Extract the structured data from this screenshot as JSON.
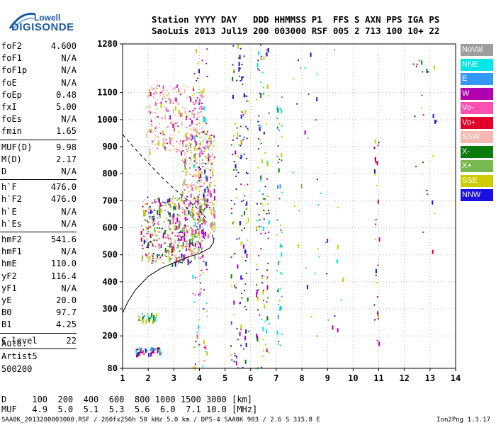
{
  "logo": {
    "line1": "Lowell",
    "line2": "DIGISONDE"
  },
  "header": {
    "row1": "Station YYYY DAY   DDD HHMMSS P1  FFS S AXN PPS IGA PS",
    "row2": "SaoLuis 2013 Jul19 200 003000 RSF 005 2 713 100 10+ 22"
  },
  "params_group1": [
    {
      "k": "foF2",
      "v": "4.600"
    },
    {
      "k": "foF1",
      "v": "N/A"
    },
    {
      "k": "foF1p",
      "v": "N/A"
    },
    {
      "k": "foE",
      "v": "N/A"
    },
    {
      "k": "foEp",
      "v": "0.48"
    },
    {
      "k": "fxI",
      "v": "5.00"
    },
    {
      "k": "foEs",
      "v": "N/A"
    },
    {
      "k": "fmin",
      "v": "1.65"
    }
  ],
  "params_group2": [
    {
      "k": "MUF(D)",
      "v": "9.98"
    },
    {
      "k": "M(D)",
      "v": "2.17"
    },
    {
      "k": "D",
      "v": "N/A"
    }
  ],
  "params_group3": [
    {
      "k": "h`F",
      "v": "476.0"
    },
    {
      "k": "h`F2",
      "v": "476.0"
    },
    {
      "k": "h`E",
      "v": "N/A"
    },
    {
      "k": "h`Es",
      "v": "N/A"
    }
  ],
  "params_group4": [
    {
      "k": "hmF2",
      "v": "541.6"
    },
    {
      "k": "hmF1",
      "v": "N/A"
    },
    {
      "k": "hmE",
      "v": "110.0"
    },
    {
      "k": "yF2",
      "v": "116.4"
    },
    {
      "k": "yF1",
      "v": "N/A"
    },
    {
      "k": "yE",
      "v": "20.0"
    },
    {
      "k": "B0",
      "v": "97.7"
    },
    {
      "k": "B1",
      "v": "4.25"
    }
  ],
  "params_group5": [
    {
      "k": "C-level",
      "v": "22"
    }
  ],
  "auto": {
    "line1": "Auto:",
    "line2": "Artist5",
    "line3": "500200"
  },
  "legend": [
    {
      "label": "NoVal",
      "color": "#9e9e9e"
    },
    {
      "label": "NNE",
      "color": "#00e5e5"
    },
    {
      "label": "E",
      "color": "#3399ff"
    },
    {
      "label": "W",
      "color": "#b000b0"
    },
    {
      "label": "Vo-",
      "color": "#ff4fb0"
    },
    {
      "label": "Vo+",
      "color": "#e0002a"
    },
    {
      "label": "SSW",
      "color": "#f6b8b0"
    },
    {
      "label": "X-",
      "color": "#0c7a0c"
    },
    {
      "label": "X+",
      "color": "#78b850"
    },
    {
      "label": "SSE",
      "color": "#cccc00"
    },
    {
      "label": "NNW",
      "color": "#1a10e0"
    }
  ],
  "bottom": {
    "d_row": "D     100  200  400  600  800 1000 1500 3000 [km]",
    "muf_row": "MUF   4.9  5.0  5.1  5.3  5.6  6.0  7.1 10.0 [MHz]"
  },
  "footer": {
    "left": "SAA0K_2013200003000.RSF / 260fx256h 50 kHz 5.0 km / DPS-4 SAA0K 903 / 2.6 S 315.8 E",
    "right": "Ion2Png 1.3.17"
  },
  "chart_data": {
    "type": "scatter",
    "x_axis": {
      "range": [
        1,
        14
      ],
      "ticks": [
        1,
        2,
        3,
        4,
        5,
        6,
        7,
        8,
        9,
        10,
        11,
        12,
        13,
        14
      ],
      "grid": true
    },
    "y_axis": {
      "range": [
        80,
        1280
      ],
      "ticks": [
        80,
        200,
        300,
        400,
        500,
        600,
        700,
        800,
        900,
        1000,
        1100,
        1280
      ],
      "grid": true
    },
    "dashed_trace": [
      [
        1.0,
        945
      ],
      [
        1.6,
        880
      ],
      [
        2.0,
        840
      ],
      [
        2.5,
        790
      ],
      [
        3.0,
        745
      ],
      [
        3.5,
        705
      ],
      [
        4.0,
        665
      ],
      [
        4.3,
        630
      ]
    ],
    "profile_curve": [
      [
        1.0,
        285
      ],
      [
        1.2,
        325
      ],
      [
        1.5,
        370
      ],
      [
        2.0,
        420
      ],
      [
        2.5,
        450
      ],
      [
        3.0,
        470
      ],
      [
        3.5,
        490
      ],
      [
        4.0,
        505
      ],
      [
        4.4,
        525
      ],
      [
        4.55,
        545
      ],
      [
        4.55,
        560
      ],
      [
        4.5,
        575
      ]
    ],
    "echo_clusters": [
      {
        "x": [
          1.7,
          4.2
        ],
        "y": [
          470,
          720
        ],
        "n": 460,
        "colors": [
          "SSW",
          "SSE",
          "W",
          "Vo+",
          "Vo-",
          "X-",
          "NNW",
          "X+"
        ]
      },
      {
        "x": [
          3.3,
          4.6
        ],
        "y": [
          560,
          960
        ],
        "n": 260,
        "colors": [
          "SSE",
          "SSE",
          "SSW",
          "Vo-",
          "W",
          "X+"
        ]
      },
      {
        "x": [
          1.9,
          4.2
        ],
        "y": [
          880,
          1130
        ],
        "n": 240,
        "colors": [
          "SSW",
          "SSW",
          "Vo-",
          "SSE",
          "W"
        ]
      },
      {
        "x": [
          1.5,
          2.5
        ],
        "y": [
          135,
          160
        ],
        "n": 60,
        "colors": [
          "Vo+",
          "W",
          "NNW",
          "NNE"
        ]
      },
      {
        "x": [
          1.6,
          2.3
        ],
        "y": [
          255,
          285
        ],
        "n": 30,
        "colors": [
          "X-",
          "X+",
          "NNE",
          "SSE"
        ]
      },
      {
        "x": [
          3.7,
          4.3
        ],
        "y": [
          80,
          1280
        ],
        "n": 130,
        "colors": [
          "NNW",
          "W",
          "Vo-",
          "NNE",
          "SSE"
        ]
      },
      {
        "x": [
          5.2,
          5.9
        ],
        "y": [
          80,
          1280
        ],
        "n": 150,
        "colors": [
          "NNW",
          "NNW",
          "W",
          "SSE",
          "X-"
        ]
      },
      {
        "x": [
          6.2,
          6.7
        ],
        "y": [
          80,
          1280
        ],
        "n": 120,
        "colors": [
          "X-",
          "SSE",
          "NNW",
          "W",
          "NNE"
        ]
      },
      {
        "x": [
          7.0,
          7.2
        ],
        "y": [
          160,
          1100
        ],
        "n": 50,
        "colors": [
          "NNE",
          "SSE",
          "X-",
          "E"
        ]
      },
      {
        "x": [
          10.8,
          11.0
        ],
        "y": [
          150,
          950
        ],
        "n": 30,
        "colors": [
          "Vo+",
          "NNW",
          "SSE",
          "W"
        ]
      },
      {
        "x": [
          12.3,
          13.3
        ],
        "y": [
          500,
          1230
        ],
        "n": 25,
        "colors": [
          "SSE",
          "NNW",
          "X-",
          "Vo+"
        ]
      },
      {
        "x": [
          7.6,
          9.6
        ],
        "y": [
          180,
          1270
        ],
        "n": 40,
        "colors": [
          "NNW",
          "NNE",
          "SSE",
          "X+",
          "W"
        ]
      }
    ]
  }
}
